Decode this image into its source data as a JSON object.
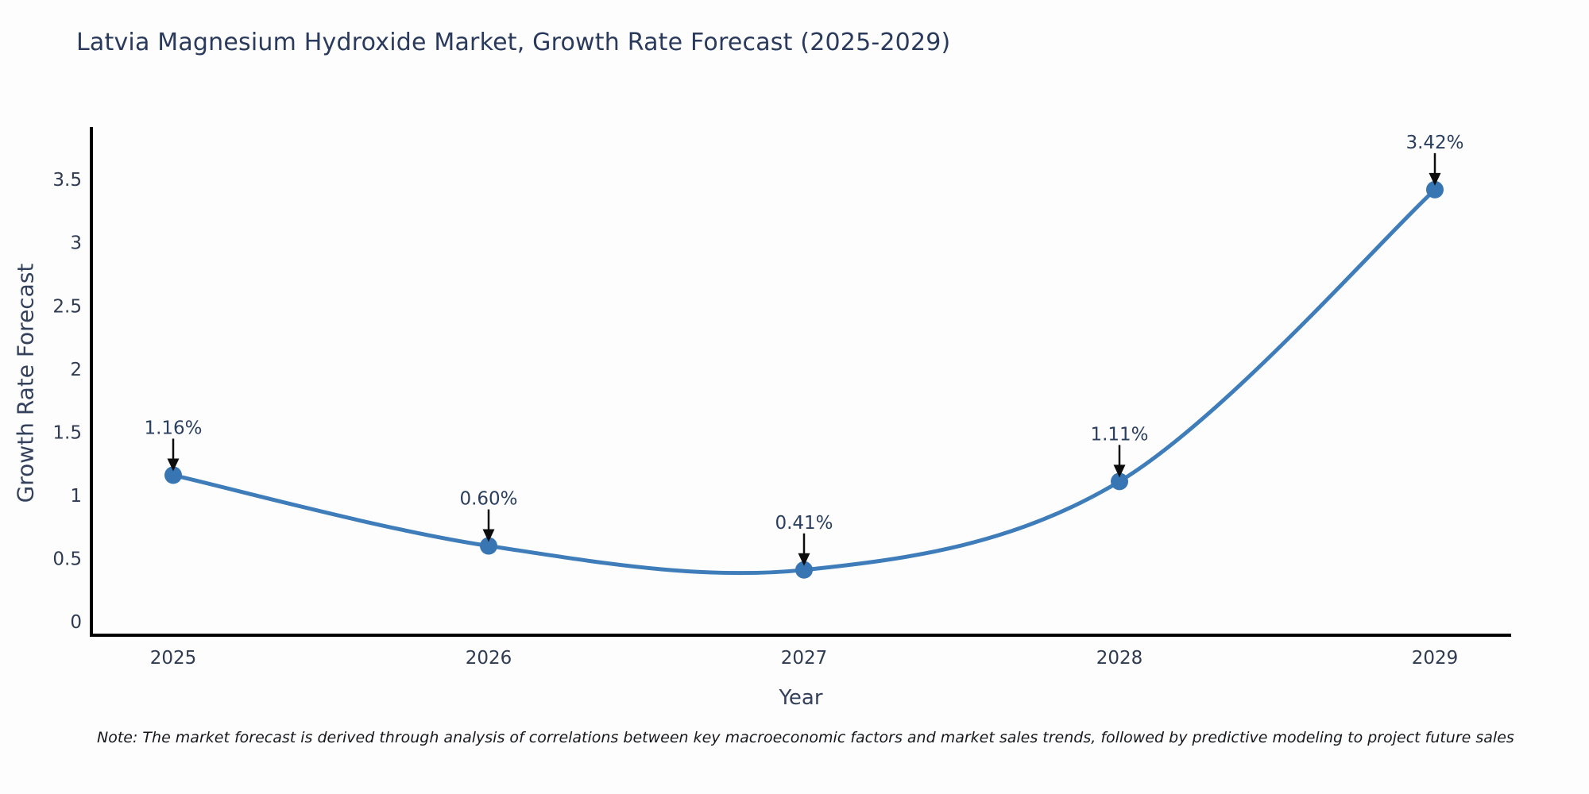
{
  "chart_data": {
    "type": "line",
    "title": "Latvia Magnesium Hydroxide Market, Growth Rate Forecast (2025-2029)",
    "xlabel": "Year",
    "ylabel": "Growth Rate Forecast",
    "categories": [
      "2025",
      "2026",
      "2027",
      "2028",
      "2029"
    ],
    "series": [
      {
        "name": "Growth Rate Forecast",
        "values": [
          1.16,
          0.6,
          0.41,
          1.11,
          3.42
        ],
        "point_labels": [
          "1.16%",
          "0.60%",
          "0.41%",
          "1.11%",
          "3.42%"
        ]
      }
    ],
    "line_shape": "spline",
    "markers": true,
    "grid": false,
    "legend_position": "none",
    "ylim": [
      -0.11,
      3.92
    ],
    "yticks": [
      0,
      0.5,
      1,
      1.5,
      2,
      2.5,
      3,
      3.5
    ],
    "ytick_labels": [
      "0",
      "0.5",
      "1",
      "1.5",
      "2",
      "2.5",
      "3",
      "3.5"
    ],
    "colors": {
      "line": "#3e7db9",
      "marker": "#3876b3",
      "axis_line": "#000000",
      "tick_text": "#2f3b52",
      "title_text": "#293a5c",
      "annotation_text": "#2a3f5f",
      "arrow": "#0d0d0d",
      "background": "#fdfdfd"
    }
  },
  "note": {
    "text": "Note: The market forecast is derived through analysis of correlations between key macroeconomic factors and market sales trends, followed by predictive modeling to project future sales"
  }
}
